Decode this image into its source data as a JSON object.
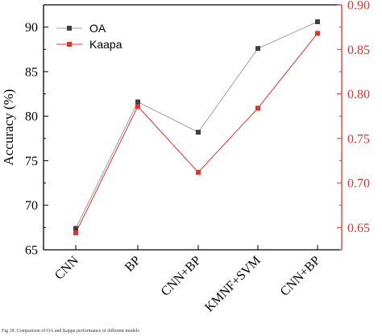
{
  "caption": "Fig 18. Comparison of OA and Kappa performance of different models",
  "colors": {
    "oa": "#404040",
    "kappa": "#e8312f",
    "oa_line": "#a0a0a0",
    "kappa_line": "#e8312f",
    "axis": "#000000",
    "right_axis": "#e8312f"
  },
  "chart_data": {
    "type": "line",
    "categories": [
      "CNN",
      "BP",
      "CNN+BP",
      "KMNF+SVM",
      "CNN+BP"
    ],
    "xlabel": "",
    "ylabel": "Accuracy (%)",
    "ylim": [
      65,
      92.5
    ],
    "y_ticks": [
      65,
      70,
      75,
      80,
      85,
      90
    ],
    "y2lim": [
      0.625,
      0.9
    ],
    "y2_ticks": [
      "0.65",
      "0.70",
      "0.75",
      "0.80",
      "0.85",
      "0.90"
    ],
    "legend_position": "top-left",
    "grid": false,
    "series": [
      {
        "name": "OA",
        "axis": "left",
        "marker": "square",
        "values": [
          67.4,
          81.6,
          78.2,
          87.6,
          90.6
        ]
      },
      {
        "name": "Kaapa",
        "axis": "right",
        "marker": "square",
        "values": [
          0.644,
          0.786,
          0.712,
          0.784,
          0.868
        ]
      }
    ]
  }
}
